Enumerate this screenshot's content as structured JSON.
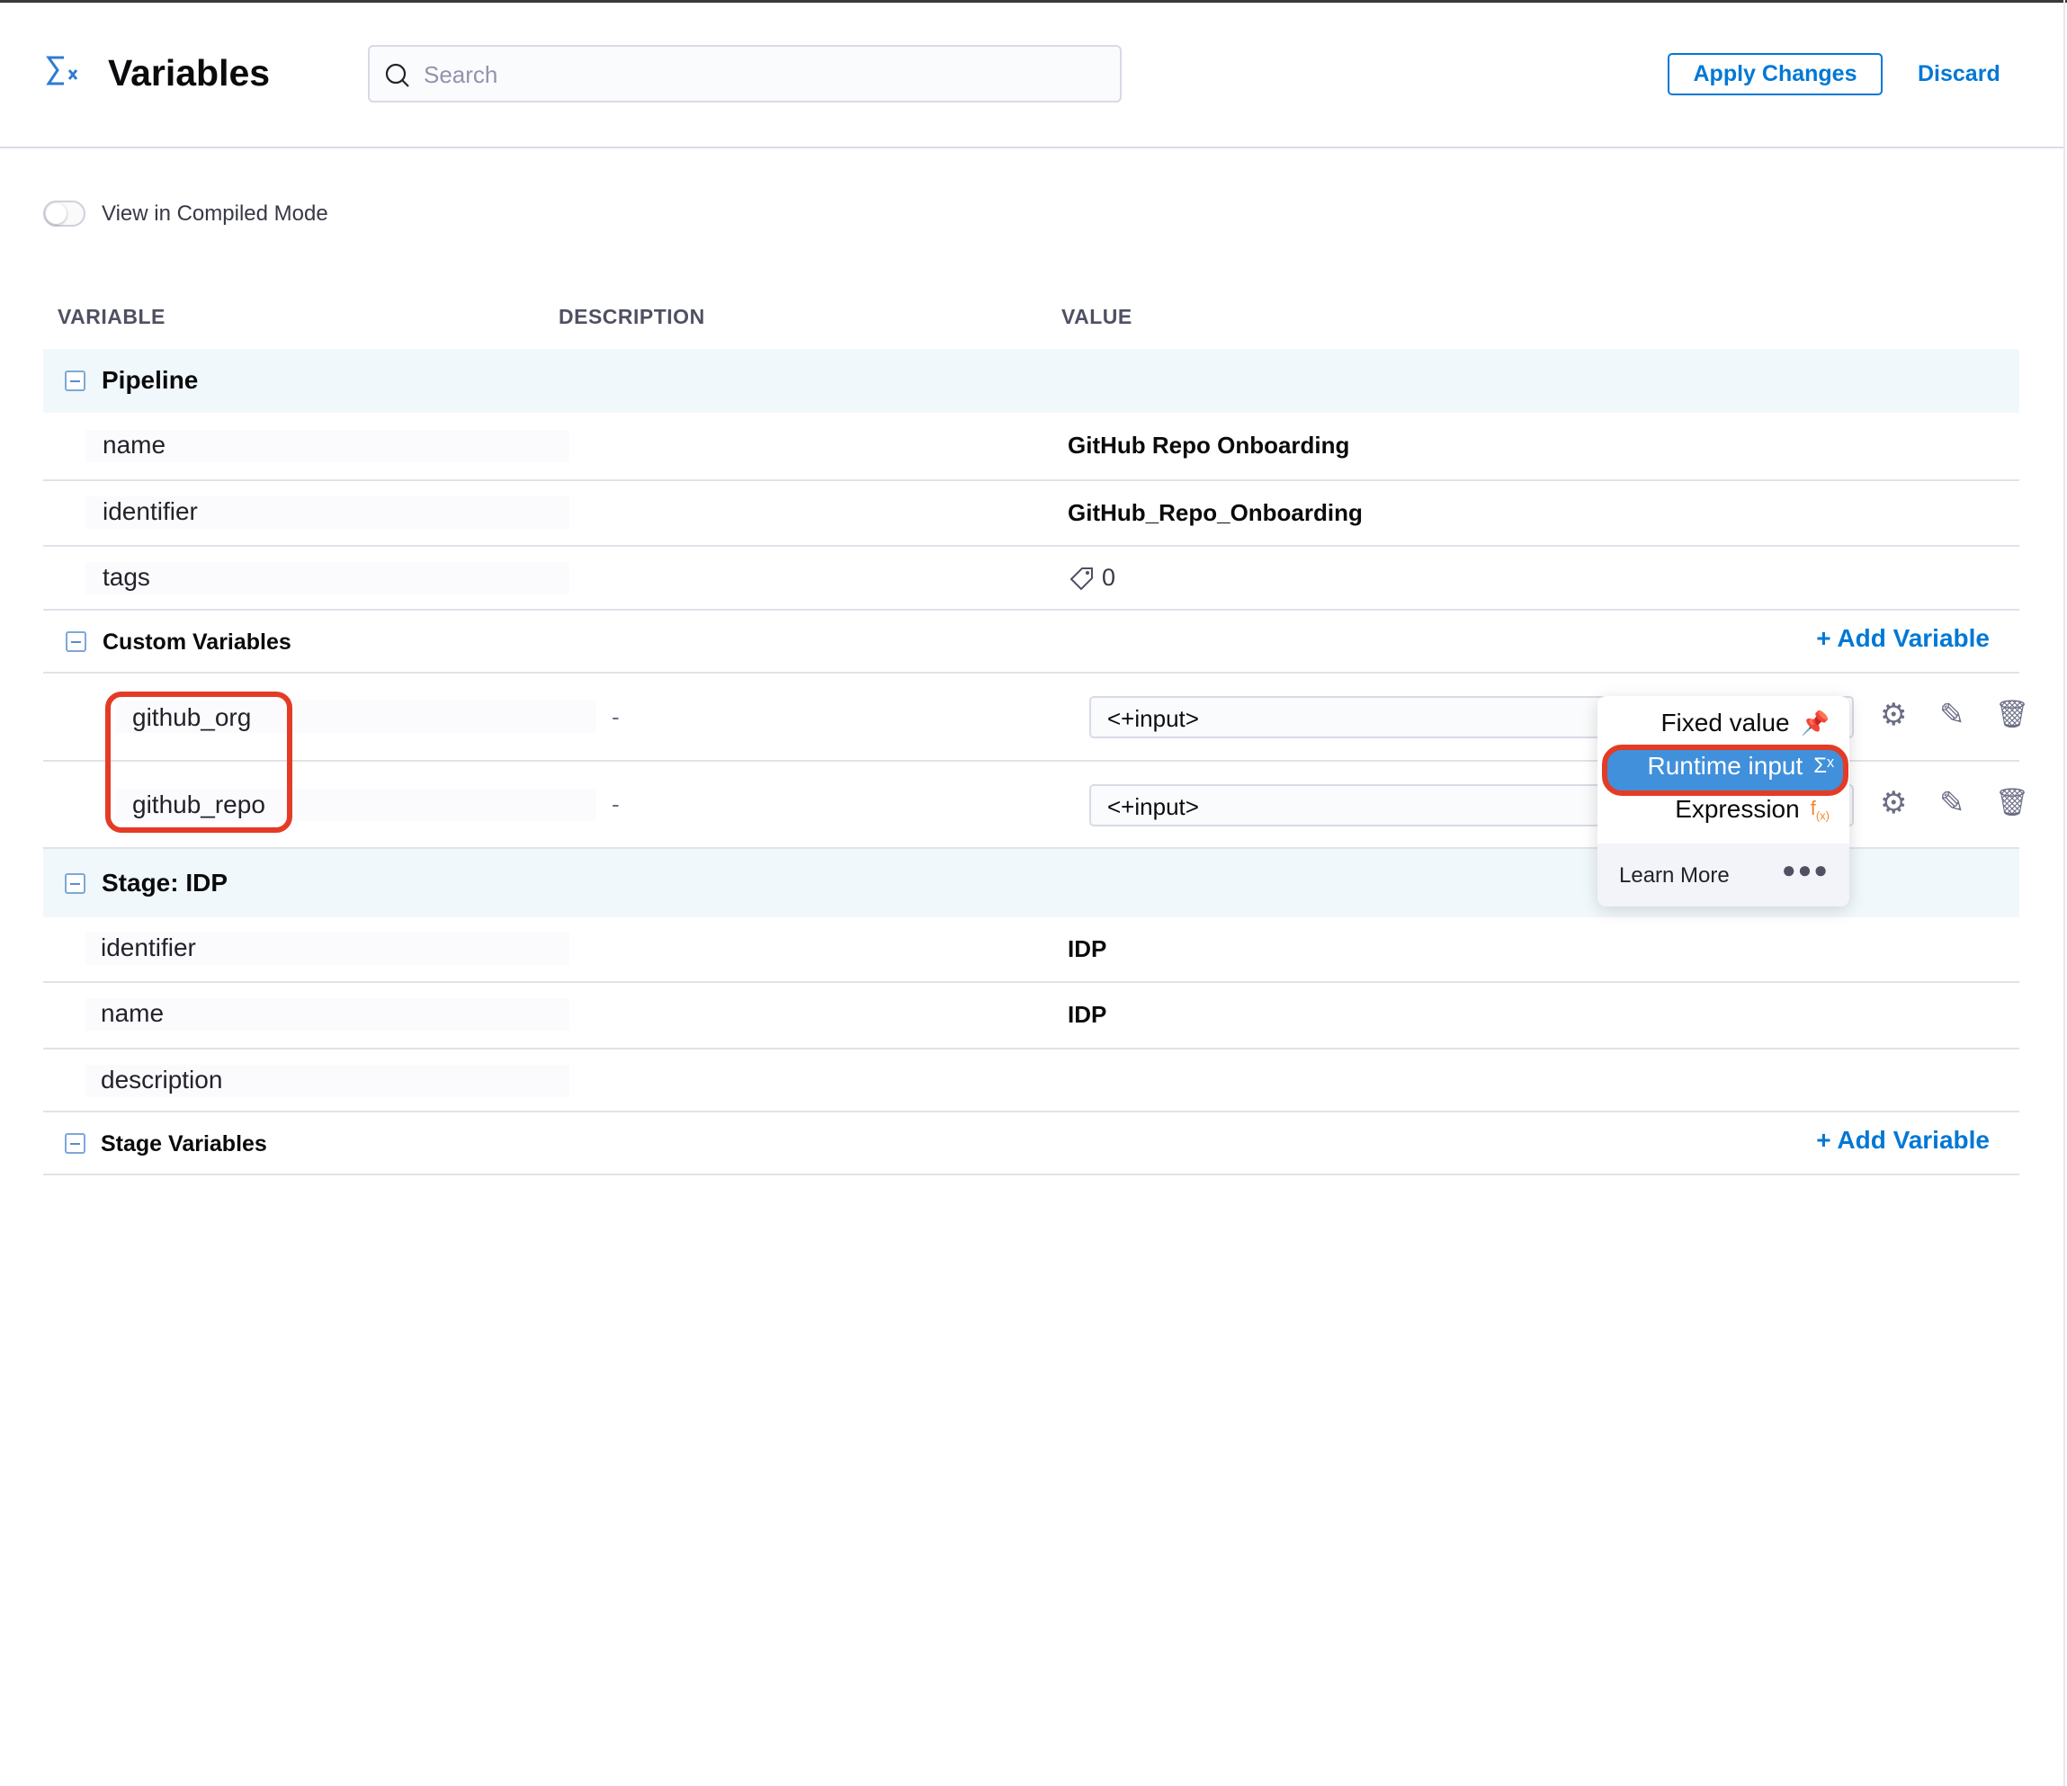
{
  "header": {
    "title": "Variables",
    "search_placeholder": "Search",
    "apply_label": "Apply Changes",
    "discard_label": "Discard"
  },
  "compiled_mode": {
    "label": "View in Compiled Mode",
    "enabled": false
  },
  "columns": [
    "VARIABLE",
    "DESCRIPTION",
    "VALUE"
  ],
  "pipeline": {
    "title": "Pipeline",
    "rows": [
      {
        "name": "name",
        "value": "GitHub Repo Onboarding"
      },
      {
        "name": "identifier",
        "value": "GitHub_Repo_Onboarding"
      },
      {
        "name": "tags",
        "value": "0"
      }
    ],
    "custom_title": "Custom Variables",
    "add_label": "Add Variable",
    "custom_rows": [
      {
        "name": "github_org",
        "description": "-",
        "value": "<+input>"
      },
      {
        "name": "github_repo",
        "description": "-",
        "value": "<+input>"
      }
    ]
  },
  "stage": {
    "title": "Stage: IDP",
    "rows": [
      {
        "name": "identifier",
        "value": "IDP"
      },
      {
        "name": "name",
        "value": "IDP"
      },
      {
        "name": "description",
        "value": ""
      }
    ],
    "vars_title": "Stage Variables",
    "add_label": "Add Variable"
  },
  "menu": {
    "items": [
      {
        "label": "Fixed value",
        "icon": "pin-icon"
      },
      {
        "label": "Runtime input",
        "icon": "sigma-x-icon",
        "selected": true
      },
      {
        "label": "Expression",
        "icon": "fx-icon"
      }
    ],
    "learn_more": "Learn More"
  },
  "colors": {
    "accent": "#0278d5",
    "highlight": "#4090dc",
    "annotation": "#e43b25",
    "group_bg": "#f0f8fb"
  }
}
